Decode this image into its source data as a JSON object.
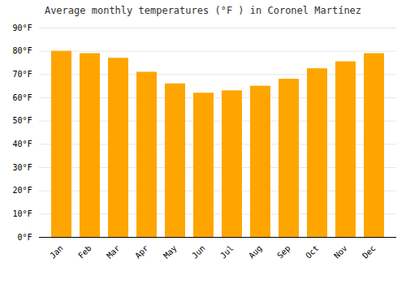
{
  "chart_data": {
    "type": "bar",
    "title": "Average monthly temperatures (°F ) in Coronel Martínez",
    "categories": [
      "Jan",
      "Feb",
      "Mar",
      "Apr",
      "May",
      "Jun",
      "Jul",
      "Aug",
      "Sep",
      "Oct",
      "Nov",
      "Dec"
    ],
    "values": [
      80.0,
      79.0,
      77.0,
      71.0,
      66.0,
      62.0,
      63.0,
      65.0,
      68.0,
      72.5,
      75.5,
      79.0
    ],
    "color": "#FFA500",
    "ylim": [
      0,
      90
    ],
    "yticks": [
      {
        "value": 0,
        "label": "0°F"
      },
      {
        "value": 10,
        "label": "10°F"
      },
      {
        "value": 20,
        "label": "20°F"
      },
      {
        "value": 30,
        "label": "30°F"
      },
      {
        "value": 40,
        "label": "40°F"
      },
      {
        "value": 50,
        "label": "50°F"
      },
      {
        "value": 60,
        "label": "60°F"
      },
      {
        "value": 70,
        "label": "70°F"
      },
      {
        "value": 80,
        "label": "80°F"
      },
      {
        "value": 90,
        "label": "90°F"
      }
    ],
    "grid": true
  }
}
